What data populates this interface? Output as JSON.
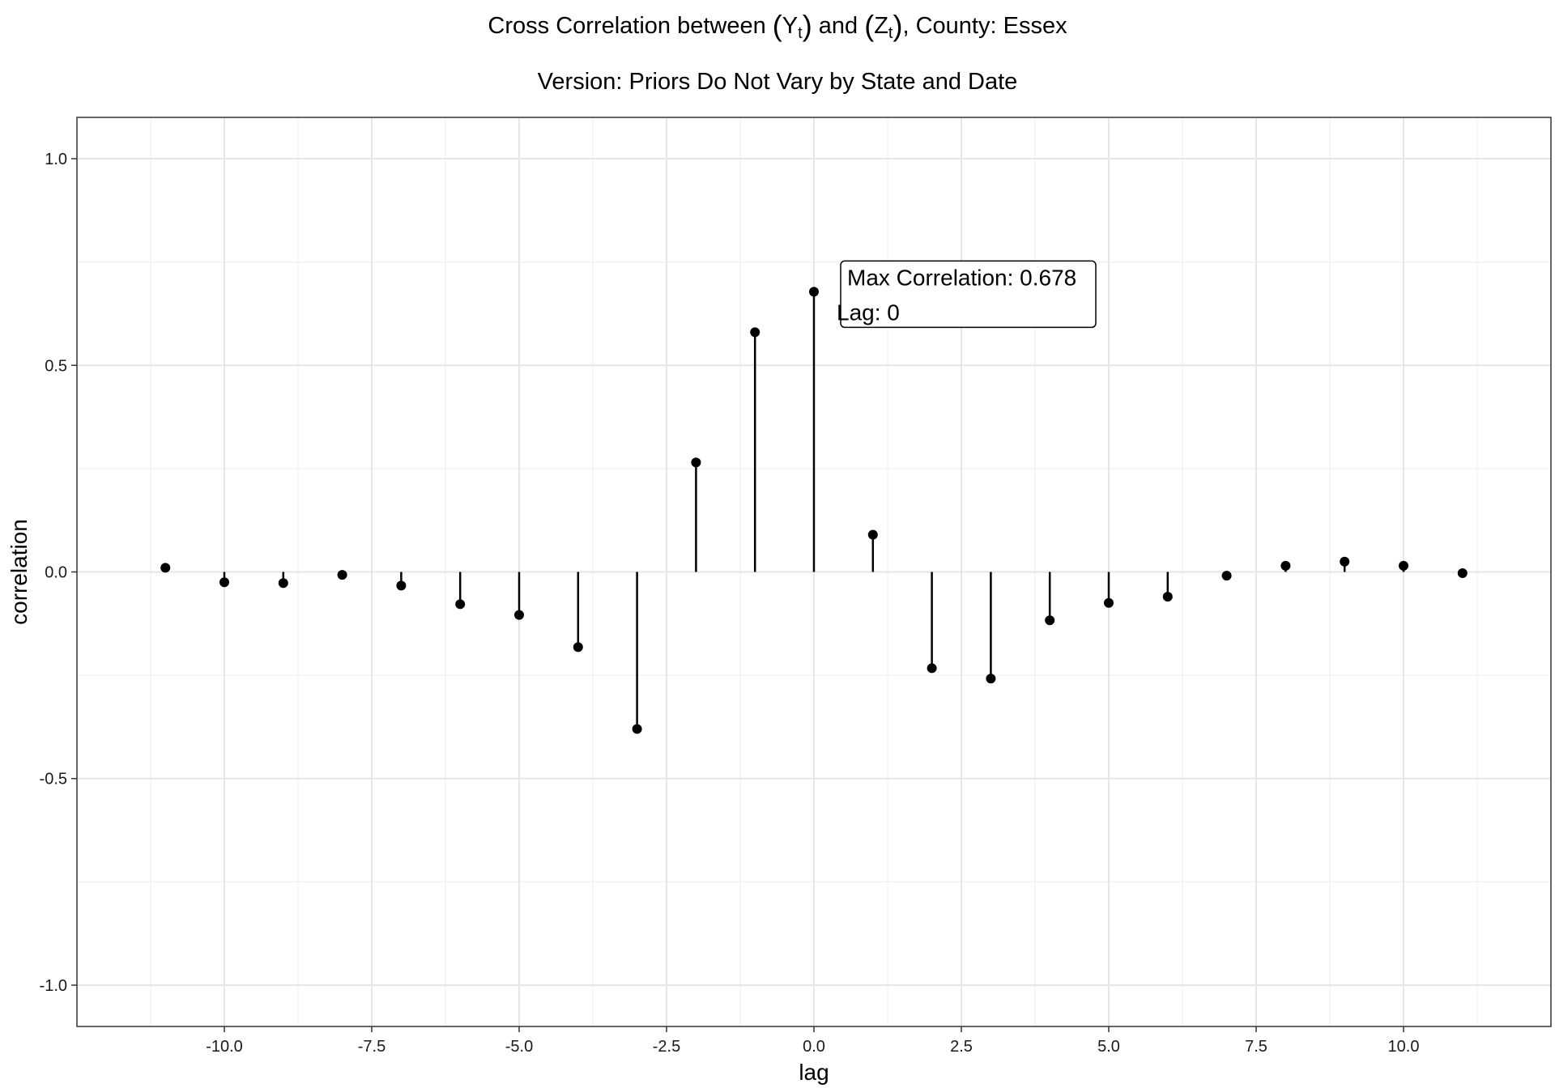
{
  "title": {
    "prefix": "Cross Correlation between ",
    "y_var": "Y",
    "y_sub": "t",
    "middle": " and ",
    "z_var": "Z",
    "z_sub": "t",
    "suffix": ", County: Essex"
  },
  "subtitle": "Version: Priors Do Not Vary by State and Date",
  "chart_data": {
    "type": "lollipop",
    "xlabel": "lag",
    "ylabel": "correlation",
    "xlim": [
      -12.5,
      12.5
    ],
    "ylim": [
      -1.1,
      1.1
    ],
    "x_ticks": [
      -10.0,
      -7.5,
      -5.0,
      -2.5,
      0.0,
      2.5,
      5.0,
      7.5,
      10.0
    ],
    "x_tick_labels": [
      "-10.0",
      "-7.5",
      "-5.0",
      "-2.5",
      "0.0",
      "2.5",
      "5.0",
      "7.5",
      "10.0"
    ],
    "y_ticks": [
      1.0,
      0.5,
      0.0,
      -0.5,
      -1.0
    ],
    "y_tick_labels": [
      "1.0",
      "0.5",
      "0.0",
      "-0.5",
      "-1.0"
    ],
    "grid": true,
    "x": [
      -11,
      -10,
      -9,
      -8,
      -7,
      -6,
      -5,
      -4,
      -3,
      -2,
      -1,
      0,
      1,
      2,
      3,
      4,
      5,
      6,
      7,
      8,
      9,
      10,
      11
    ],
    "y": [
      0.01,
      -0.025,
      -0.027,
      -0.007,
      -0.033,
      -0.078,
      -0.104,
      -0.182,
      -0.38,
      0.265,
      0.58,
      0.678,
      0.09,
      -0.233,
      -0.258,
      -0.117,
      -0.075,
      -0.06,
      -0.009,
      0.015,
      0.025,
      0.015,
      -0.003
    ],
    "annotation": {
      "line1": "Max Correlation: 0.678",
      "line2": "Lag: 0",
      "x": 0,
      "y": 0.678
    }
  }
}
